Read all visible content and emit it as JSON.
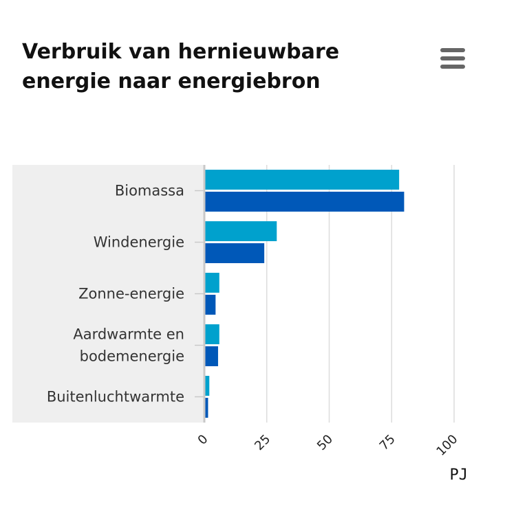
{
  "menu_icon": "hamburger-menu-icon",
  "chart_data": {
    "type": "bar",
    "orientation": "horizontal",
    "title": "Verbruik van hernieuwbare energie naar energiebron",
    "xlabel": "PJ",
    "ylabel": "",
    "categories": [
      [
        "Biomassa"
      ],
      [
        "Windenergie"
      ],
      [
        "Zonne-energie"
      ],
      [
        "Aardwarmte en",
        "bodemenergie"
      ],
      [
        "Buitenluchtwarmte"
      ]
    ],
    "series": [
      {
        "color": "#00a1cd",
        "values": [
          78,
          29,
          6,
          6,
          2
        ]
      },
      {
        "color": "#0058b8",
        "values": [
          80,
          24,
          4.5,
          5.5,
          1.5
        ]
      }
    ],
    "xlim": [
      0,
      100
    ],
    "xticks": [
      "0",
      "25",
      "50",
      "75",
      "100"
    ],
    "grid": true,
    "legend": "none"
  }
}
